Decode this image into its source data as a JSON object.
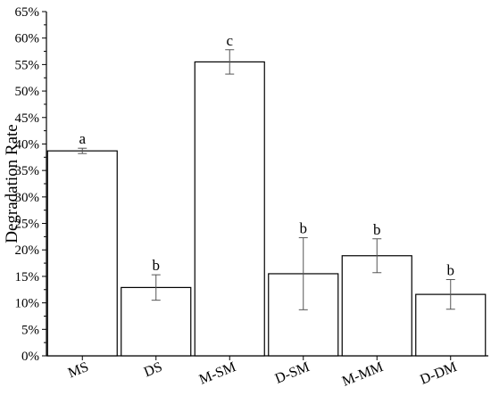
{
  "chart_data": {
    "type": "bar",
    "title": "",
    "xlabel": "",
    "ylabel": "Degradation Rate",
    "ylim": [
      0,
      65
    ],
    "y_ticks": [
      "0%",
      "5%",
      "10%",
      "15%",
      "20%",
      "25%",
      "30%",
      "35%",
      "40%",
      "45%",
      "50%",
      "55%",
      "60%",
      "65%"
    ],
    "categories": [
      "MS",
      "DS",
      "M-SM",
      "D-SM",
      "M-MM",
      "D-DM"
    ],
    "values": [
      38.7,
      12.9,
      55.5,
      15.5,
      18.9,
      11.6
    ],
    "errors": [
      0.5,
      2.4,
      2.3,
      6.8,
      3.2,
      2.8
    ],
    "significance": [
      "a",
      "b",
      "c",
      "b",
      "b",
      "b"
    ],
    "grid": false,
    "colors": {
      "bar_fill": "#ffffff",
      "bar_stroke": "#000000",
      "error_bar": "#555555"
    }
  }
}
